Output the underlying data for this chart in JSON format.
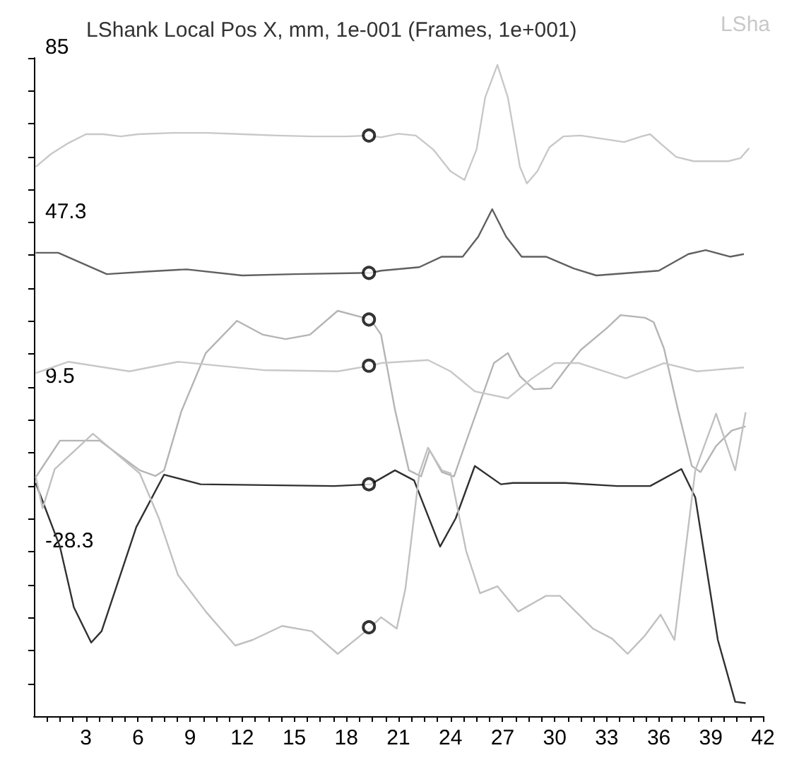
{
  "chart_data": {
    "type": "line",
    "title": "LShank Local Pos X, mm, 1e-001 (Frames, 1e+001)",
    "annotations": [
      "LSha"
    ],
    "xlim": [
      0,
      42
    ],
    "ylim": [
      -66,
      85
    ],
    "xticks": [
      {
        "value": 0.75,
        "label": null
      },
      {
        "value": 1.5,
        "label": null
      },
      {
        "value": 2.25,
        "label": null
      },
      3,
      {
        "value": 3.75,
        "label": null
      },
      {
        "value": 4.5,
        "label": null
      },
      {
        "value": 5.25,
        "label": null
      },
      6,
      {
        "value": 6.75,
        "label": null
      },
      {
        "value": 7.5,
        "label": null
      },
      {
        "value": 8.25,
        "label": null
      },
      9,
      {
        "value": 9.75,
        "label": null
      },
      {
        "value": 10.5,
        "label": null
      },
      {
        "value": 11.25,
        "label": null
      },
      12,
      {
        "value": 12.75,
        "label": null
      },
      {
        "value": 13.5,
        "label": null
      },
      {
        "value": 14.25,
        "label": null
      },
      15,
      {
        "value": 15.75,
        "label": null
      },
      {
        "value": 16.5,
        "label": null
      },
      {
        "value": 17.25,
        "label": null
      },
      18,
      {
        "value": 18.75,
        "label": null
      },
      {
        "value": 19.5,
        "label": null
      },
      {
        "value": 20.25,
        "label": null
      },
      21,
      {
        "value": 21.75,
        "label": null
      },
      {
        "value": 22.5,
        "label": null
      },
      {
        "value": 23.25,
        "label": null
      },
      24,
      {
        "value": 24.75,
        "label": null
      },
      {
        "value": 25.5,
        "label": null
      },
      {
        "value": 26.25,
        "label": null
      },
      27,
      {
        "value": 27.75,
        "label": null
      },
      {
        "value": 28.5,
        "label": null
      },
      {
        "value": 29.25,
        "label": null
      },
      30,
      {
        "value": 30.75,
        "label": null
      },
      {
        "value": 31.5,
        "label": null
      },
      {
        "value": 32.25,
        "label": null
      },
      33,
      {
        "value": 33.75,
        "label": null
      },
      {
        "value": 34.5,
        "label": null
      },
      {
        "value": 35.25,
        "label": null
      },
      36,
      {
        "value": 36.75,
        "label": null
      },
      {
        "value": 37.5,
        "label": null
      },
      {
        "value": 38.25,
        "label": null
      },
      39,
      {
        "value": 39.75,
        "label": null
      },
      {
        "value": 40.5,
        "label": null
      },
      {
        "value": 41.25,
        "label": null
      },
      42
    ],
    "yticks": [
      {
        "value": -58.5,
        "label": null
      },
      {
        "value": -51,
        "label": null
      },
      {
        "value": -43.4,
        "label": null
      },
      {
        "value": -35.9,
        "label": null
      },
      -28.3,
      {
        "value": -20.7,
        "label": null
      },
      {
        "value": -13.2,
        "label": null
      },
      {
        "value": -5.6,
        "label": null
      },
      {
        "value": 2,
        "label": null
      },
      9.5,
      {
        "value": 17.1,
        "label": null
      },
      {
        "value": 24.7,
        "label": null
      },
      {
        "value": 32.2,
        "label": null
      },
      {
        "value": 39.8,
        "label": null
      },
      47.3,
      {
        "value": 54.8,
        "label": null
      },
      {
        "value": 62.3,
        "label": null
      },
      {
        "value": 70,
        "label": null
      },
      {
        "value": 77.5,
        "label": null
      },
      85
    ],
    "grid": false,
    "marker": "none",
    "line_style": "solid",
    "series": [
      {
        "color": "#c8c8c8",
        "x": [
          0.1,
          1,
          2,
          3,
          4,
          5,
          6,
          8,
          10,
          12,
          14,
          16,
          18,
          19.3,
          20,
          21,
          22,
          23,
          24,
          24.8,
          25.5,
          26,
          26.7,
          27.3,
          28,
          28.4,
          29,
          29.7,
          30.5,
          31.5,
          33,
          34,
          35,
          35.5,
          36.2,
          37,
          38,
          40,
          40.7,
          41.2
        ],
        "values": [
          60,
          63,
          65.5,
          67.5,
          67.5,
          67,
          67.5,
          67.8,
          67.8,
          67.5,
          67.2,
          67,
          67,
          67.2,
          66.8,
          67.6,
          67.2,
          64,
          59,
          57,
          64,
          76,
          83.4,
          76,
          60,
          56.2,
          59,
          64.5,
          67,
          67.2,
          66.3,
          65.7,
          67,
          67.5,
          65,
          62.3,
          61.3,
          61.3,
          62,
          64.3
        ]
      },
      {
        "color": "#606060",
        "x": [
          0.1,
          1.4,
          4.2,
          6.5,
          8.8,
          12,
          15,
          19.4,
          20,
          22.2,
          23.5,
          24.7,
          25.6,
          26.4,
          27.2,
          28.1,
          29.5,
          31.1,
          32.4,
          36,
          37.7,
          38.7,
          40.1,
          40.9
        ],
        "values": [
          40.3,
          40.3,
          35.4,
          36,
          36.5,
          35.1,
          35.4,
          35.7,
          36.2,
          37,
          39.4,
          39.4,
          44,
          50.3,
          44,
          39.4,
          39.4,
          36.7,
          35.1,
          36.2,
          40,
          40.9,
          39.4,
          40
        ]
      },
      {
        "color": "#b4b4b4",
        "x": [
          0.1,
          1.5,
          3.8,
          6.1,
          7,
          7.5,
          8.5,
          9.9,
          11.7,
          13.2,
          14.5,
          15.9,
          17.5,
          19.4,
          20,
          20.8,
          21.6,
          22.3,
          22.8,
          23.5,
          24.2,
          24.9,
          25.7,
          26.5,
          27.3,
          28,
          28.8,
          29.8,
          30.7,
          31.5,
          33,
          33.8,
          35.2,
          35.7,
          36.3,
          37.1,
          37.9,
          38.4,
          39.3,
          40.2,
          41
        ],
        "values": [
          -11.2,
          -2.8,
          -2.8,
          -9.6,
          -10.9,
          -9.6,
          4,
          17.3,
          24.7,
          21.5,
          20.5,
          21.5,
          27,
          25,
          21.5,
          4.3,
          -9.6,
          -11,
          -5,
          -10,
          -11,
          -3,
          6,
          15,
          17.3,
          12,
          9,
          9.2,
          14,
          18,
          23,
          26,
          25.4,
          24.4,
          18.3,
          4.3,
          -8.6,
          -10,
          -4,
          -0.5,
          0.5
        ]
      },
      {
        "color": "#c8c8c8",
        "x": [
          0.1,
          2,
          5.5,
          8.3,
          13.2,
          17.5,
          19.4,
          20,
          22.7,
          24,
          25.4,
          27.3,
          28.7,
          30,
          31.4,
          34.1,
          36.3,
          38.2,
          40.9
        ],
        "values": [
          12.7,
          15.3,
          13.1,
          15.3,
          13.4,
          13.1,
          14.4,
          15,
          15.7,
          13.1,
          8.5,
          6.9,
          11.5,
          15,
          15,
          11.5,
          15,
          13.1,
          14
        ]
      },
      {
        "color": "#303030",
        "x": [
          0.1,
          1.5,
          2.3,
          3.3,
          3.9,
          5.9,
          7.5,
          9.6,
          17.3,
          19.4,
          20.8,
          21.9,
          23.4,
          24.3,
          25.4,
          26.9,
          27.6,
          30.6,
          33.6,
          35.5,
          37.3,
          38.1,
          39.4,
          40.4,
          41
        ],
        "values": [
          -12.5,
          -27.1,
          -41,
          -49.1,
          -46.5,
          -22.6,
          -10.6,
          -12.8,
          -13.2,
          -12.8,
          -9.6,
          -11.9,
          -27.1,
          -20.6,
          -8.6,
          -12.8,
          -12.5,
          -12.5,
          -13.2,
          -13.2,
          -9.3,
          -15.8,
          -48.5,
          -62.7,
          -63
        ]
      },
      {
        "color": "#c0c0c0",
        "x": [
          0.1,
          0.5,
          1.2,
          3.4,
          6.1,
          7.2,
          8.3,
          9.9,
          11.6,
          12.6,
          14.3,
          16,
          17.5,
          19.4,
          20,
          20.9,
          21.4,
          22.2,
          22.7,
          23.5,
          24,
          24.9,
          25.7,
          26.7,
          27.9,
          29.5,
          30.3,
          32.2,
          33.3,
          34.2,
          35.2,
          36.1,
          36.9,
          38.1,
          39.3,
          40.4,
          41
        ],
        "values": [
          -11,
          -18.3,
          -9.3,
          -1.2,
          -10.3,
          -20.6,
          -33.6,
          -42,
          -49.8,
          -48.5,
          -45.3,
          -46.5,
          -51.7,
          -45.6,
          -43.3,
          -45.9,
          -36.8,
          -10.3,
          -4.4,
          -9.6,
          -10.3,
          -28.1,
          -37.8,
          -36.2,
          -42,
          -38.4,
          -38.4,
          -45.9,
          -48.2,
          -51.7,
          -47.5,
          -42.7,
          -48.5,
          -9.6,
          3.4,
          -9.6,
          3.7
        ]
      },
      {
        "type": "scatter",
        "marker": "circle",
        "color": "#000000",
        "x": [
          19.3,
          19.3,
          19.3,
          19.3,
          19.3,
          19.3
        ],
        "values": [
          67.2,
          35.7,
          25,
          14.4,
          -12.8,
          -45.6
        ]
      }
    ]
  }
}
